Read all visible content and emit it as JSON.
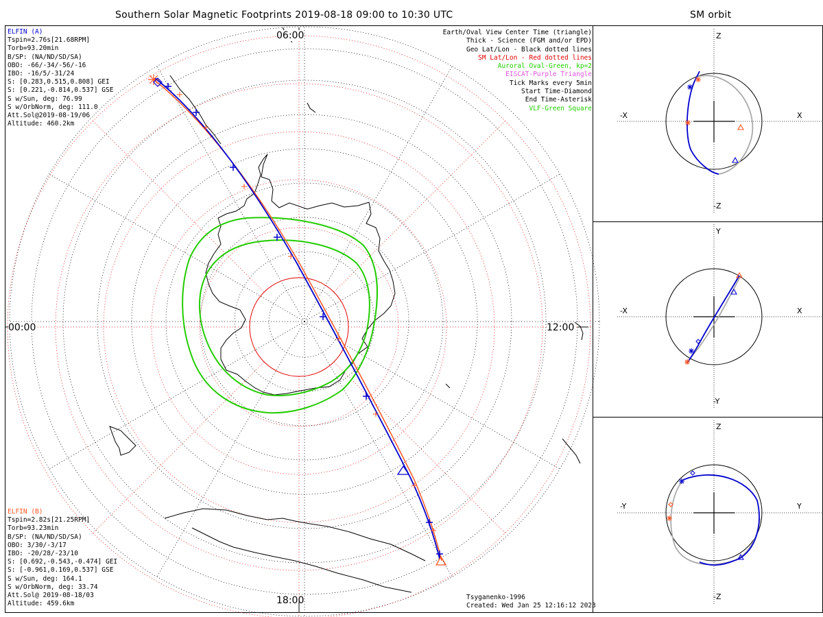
{
  "header": {
    "main_title": "Southern Solar Magnetic Footprints 2019-08-18 09:00 to 10:30 UTC",
    "orbit_title": "SM orbit"
  },
  "map": {
    "clock_labels": {
      "top": "06:00",
      "left": "00:00",
      "right": "12:00",
      "bottom": "18:00"
    }
  },
  "legend": {
    "items": [
      {
        "text": "Earth/Oval View Center Time (triangle)",
        "color": "#000000"
      },
      {
        "text": "Thick - Science (FGM and/or EPD)",
        "color": "#000000"
      },
      {
        "text": "Geo Lat/Lon - Black dotted lines",
        "color": "#000000"
      },
      {
        "text": "SM Lat/Lon - Red dotted lines",
        "color": "#e00000"
      },
      {
        "text": "Auroral Oval-Green, kp=2",
        "color": "#22cc00"
      },
      {
        "text": "EISCAT-Purple Triangle",
        "color": "#dd55dd"
      },
      {
        "text": "Tick Marks every 5min",
        "color": "#000000"
      },
      {
        "text": "Start Time-Diamond",
        "color": "#000000"
      },
      {
        "text": "End Time-Asterisk",
        "color": "#000000"
      },
      {
        "text": "VLF-Green Square",
        "color": "#22cc00"
      }
    ]
  },
  "sat_a": {
    "name": "ELFIN (A)",
    "color": "#0000cc",
    "lines": [
      "Tspin=2.76s[21.68RPM]",
      "Torb=93.20min",
      "B/SP: (NA/ND/SD/SA)",
      "OBO: -66/-34/-56/-16",
      "IBO: -16/5/-31/24",
      "S: [0.283,0.515,0.808] GEI",
      "S: [0.221,-0.814,0.537] GSE",
      "S w/Sun, deg: 76.99",
      "S w/OrbNorm, deg: 111.0",
      "Att.Sol@2019-08-19/06",
      "Altitude: 460.2km"
    ]
  },
  "sat_b": {
    "name": "ELFIN (B)",
    "color": "#ff5522",
    "lines": [
      "Tspin=2.82s[21.25RPM]",
      "Torb=93.23min",
      "B/SP: (NA/ND/SD/SA)",
      "OBO: 3/30/-3/17",
      "IBO: -20/28/-23/10",
      "S: [0.692,-0.543,-0.474] GEI",
      "S: [-0.961,0.169,0.537] GSE",
      "S w/Sun, deg: 164.1",
      "S w/OrbNorm, deg: 33.74",
      "Att.Sol@ 2019-08-18/03",
      "Altitude: 459.6km"
    ]
  },
  "footer": {
    "model": "Tsyganenko-1996",
    "created": "Created: Wed Jan 25 12:16:12 2023"
  },
  "orbit_panels": [
    {
      "up": "Z",
      "down": "-Z",
      "left": "-X",
      "right": "X"
    },
    {
      "up": "Y",
      "down": "-Y",
      "left": "-X",
      "right": "X"
    },
    {
      "up": "Z",
      "down": "-Z",
      "left": "-Y",
      "right": "Y"
    }
  ],
  "colors": {
    "sat_a": "#0000cc",
    "sat_b": "#ff5522",
    "oval": "#22cc00",
    "sm_grid": "#e00000",
    "orbit_grey": "#aaaaaa"
  }
}
